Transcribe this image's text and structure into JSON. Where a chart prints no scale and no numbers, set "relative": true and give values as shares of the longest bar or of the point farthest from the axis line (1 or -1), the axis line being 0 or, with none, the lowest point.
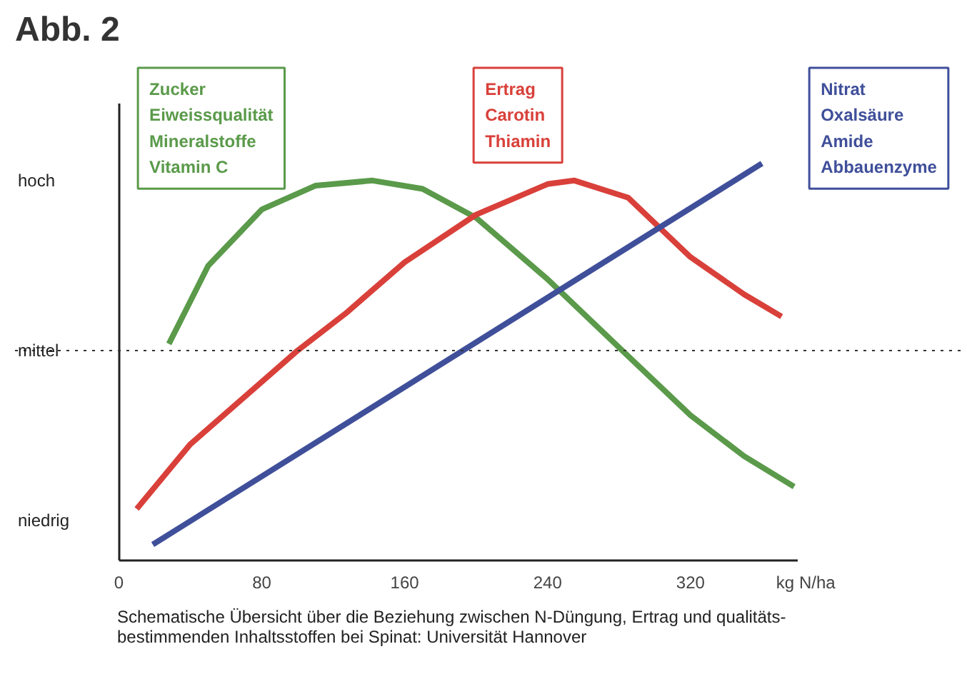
{
  "chart_data": {
    "type": "line",
    "title": "Abb. 2",
    "xlabel": "kg N/ha",
    "relative": true,
    "xlim": [
      0,
      380
    ],
    "xticks": [
      0,
      80,
      160,
      240,
      320
    ],
    "grid": false,
    "legend": "top",
    "marker": "none",
    "line_style": "solid",
    "ref_lines": [
      {
        "axis": "y",
        "value": 0.528,
        "label": "mittel",
        "line_style": "dotted",
        "color": "#333333"
      }
    ],
    "annotations": [
      "hoch",
      "niedrig",
      "Schematische Übersicht über die Beziehung zwischen N-Düngung, Ertrag und qualitäts-\nbestimmenden Inhaltsstoffen bei Spinat: Universität Hannover"
    ],
    "series": [
      {
        "name": "Zucker\nEiweissqualität\nMineralstoffe\nVitamin C",
        "color": "#5a9a4a",
        "x": [
          28,
          50,
          80,
          110,
          142,
          170,
          200,
          240,
          280,
          320,
          350,
          378
        ],
        "values": [
          0.545,
          0.742,
          0.884,
          0.944,
          0.957,
          0.936,
          0.863,
          0.708,
          0.536,
          0.365,
          0.262,
          0.185
        ]
      },
      {
        "name": "Ertrag\nCarotin\nThiamin",
        "color": "#d9403a",
        "x": [
          10,
          40,
          100,
          127,
          160,
          200,
          240,
          255,
          285,
          320,
          350,
          371
        ],
        "values": [
          0.129,
          0.292,
          0.528,
          0.622,
          0.751,
          0.871,
          0.948,
          0.957,
          0.914,
          0.764,
          0.67,
          0.614
        ]
      },
      {
        "name": "Nitrat\nOxalsäure\nAmide\nAbbauenzyme",
        "color": "#3f4f9a",
        "x": [
          19,
          360
        ],
        "values": [
          0.039,
          1.0
        ]
      }
    ]
  }
}
